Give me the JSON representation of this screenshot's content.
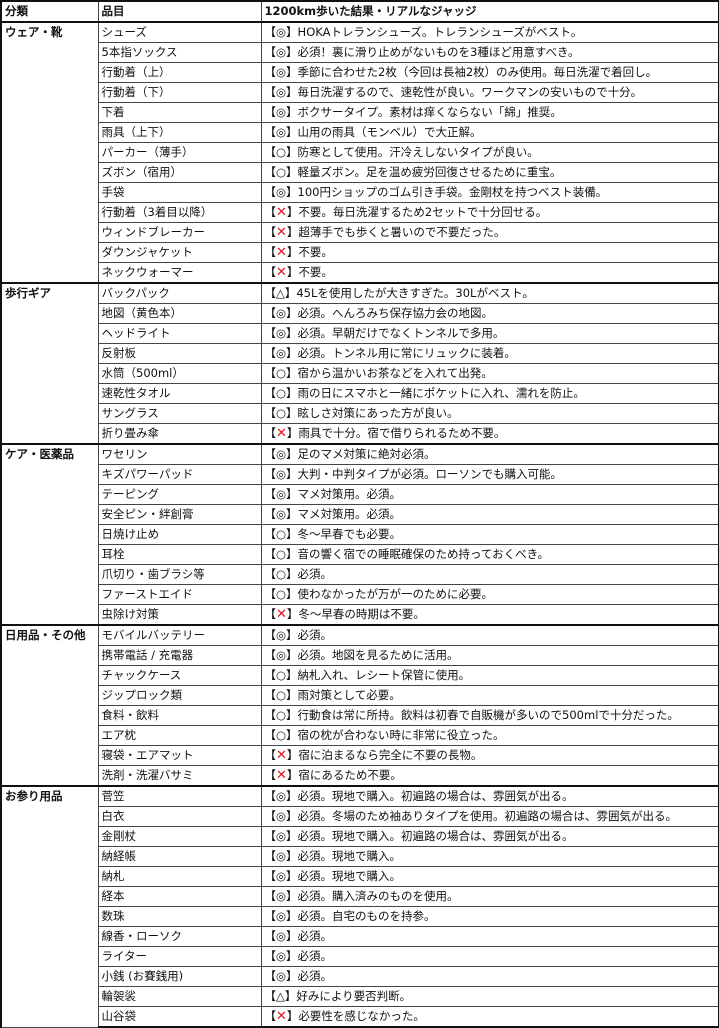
{
  "header": {
    "category": "分類",
    "item": "品目",
    "judgement": "1200km歩いた結果・リアルなジャッジ"
  },
  "bracket_open": "【",
  "bracket_close": "】",
  "colors": {
    "cross_mark": "#e0141e"
  },
  "groups": [
    {
      "category": "ウェア・靴",
      "items": [
        {
          "name": "シューズ",
          "mark": "◎",
          "note": "HOKAトレランシューズ。トレランシューズがベスト。"
        },
        {
          "name": "5本指ソックス",
          "mark": "◎",
          "note": "必須！裏に滑り止めがないものを3種ほど用意すべき。"
        },
        {
          "name": "行動着（上）",
          "mark": "◎",
          "note": "季節に合わせた2枚（今回は長袖2枚）のみ使用。毎日洗濯で着回し。"
        },
        {
          "name": "行動着（下）",
          "mark": "◎",
          "note": "毎日洗濯するので、速乾性が良い。ワークマンの安いもので十分。"
        },
        {
          "name": "下着",
          "mark": "◎",
          "note": "ボクサータイプ。素材は痒くならない「綿」推奨。"
        },
        {
          "name": "雨具（上下）",
          "mark": "◎",
          "note": "山用の雨具（モンベル）で大正解。"
        },
        {
          "name": "パーカー（薄手）",
          "mark": "○",
          "note": "防寒として使用。汗冷えしないタイプが良い。"
        },
        {
          "name": "ズボン（宿用）",
          "mark": "○",
          "note": "軽量ズボン。足を温め疲労回復させるために重宝。"
        },
        {
          "name": "手袋",
          "mark": "◎",
          "note": "100円ショップのゴム引き手袋。金剛杖を持つベスト装備。"
        },
        {
          "name": "行動着（3着目以降）",
          "mark": "✕",
          "note": "不要。毎日洗濯するため2セットで十分回せる。"
        },
        {
          "name": "ウィンドブレーカー",
          "mark": "✕",
          "note": "超薄手でも歩くと暑いので不要だった。"
        },
        {
          "name": "ダウンジャケット",
          "mark": "✕",
          "note": "不要。"
        },
        {
          "name": "ネックウォーマー",
          "mark": "✕",
          "note": "不要。"
        }
      ]
    },
    {
      "category": "歩行ギア",
      "items": [
        {
          "name": "バックパック",
          "mark": "△",
          "note": "45Lを使用したが大きすぎた。30Lがベスト。"
        },
        {
          "name": "地図（黄色本）",
          "mark": "◎",
          "note": "必須。へんろみち保存協力会の地図。"
        },
        {
          "name": "ヘッドライト",
          "mark": "◎",
          "note": "必須。早朝だけでなくトンネルで多用。"
        },
        {
          "name": "反射板",
          "mark": "◎",
          "note": "必須。トンネル用に常にリュックに装着。"
        },
        {
          "name": "水筒（500ml）",
          "mark": "○",
          "note": "宿から温かいお茶などを入れて出発。"
        },
        {
          "name": "速乾性タオル",
          "mark": "○",
          "note": "雨の日にスマホと一緒にポケットに入れ、濡れを防止。"
        },
        {
          "name": "サングラス",
          "mark": "○",
          "note": "眩しさ対策にあった方が良い。"
        },
        {
          "name": "折り畳み傘",
          "mark": "✕",
          "note": "雨具で十分。宿で借りられるため不要。"
        }
      ]
    },
    {
      "category": "ケア・医薬品",
      "items": [
        {
          "name": "ワセリン",
          "mark": "◎",
          "note": "足のマメ対策に絶対必須。"
        },
        {
          "name": "キズパワーパッド",
          "mark": "◎",
          "note": "大判・中判タイプが必須。ローソンでも購入可能。"
        },
        {
          "name": "テーピング",
          "mark": "◎",
          "note": "マメ対策用。必須。"
        },
        {
          "name": "安全ピン・絆創膏",
          "mark": "◎",
          "note": "マメ対策用。必須。"
        },
        {
          "name": "日焼け止め",
          "mark": "○",
          "note": "冬〜早春でも必要。"
        },
        {
          "name": "耳栓",
          "mark": "○",
          "note": "音の響く宿での睡眠確保のため持っておくべき。"
        },
        {
          "name": "爪切り・歯ブラシ等",
          "mark": "○",
          "note": "必須。"
        },
        {
          "name": "ファーストエイド",
          "mark": "○",
          "note": "使わなかったが万が一のために必要。"
        },
        {
          "name": "虫除け対策",
          "mark": "✕",
          "note": "冬〜早春の時期は不要。"
        }
      ]
    },
    {
      "category": "日用品・その他",
      "items": [
        {
          "name": "モバイルバッテリー",
          "mark": "◎",
          "note": "必須。"
        },
        {
          "name": "携帯電話 / 充電器",
          "mark": "◎",
          "note": "必須。地図を見るために活用。"
        },
        {
          "name": "チャックケース",
          "mark": "○",
          "note": "納札入れ、レシート保管に使用。"
        },
        {
          "name": "ジップロック類",
          "mark": "○",
          "note": "雨対策として必要。"
        },
        {
          "name": "食料・飲料",
          "mark": "○",
          "note": "行動食は常に所持。飲料は初春で自販機が多いので500mlで十分だった。"
        },
        {
          "name": "エア枕",
          "mark": "○",
          "note": "宿の枕が合わない時に非常に役立った。"
        },
        {
          "name": "寝袋・エアマット",
          "mark": "✕",
          "note": "宿に泊まるなら完全に不要の長物。"
        },
        {
          "name": "洗剤・洗濯バサミ",
          "mark": "✕",
          "note": "宿にあるため不要。"
        }
      ]
    },
    {
      "category": "お参り用品",
      "items": [
        {
          "name": "菅笠",
          "mark": "◎",
          "note": "必須。現地で購入。初遍路の場合は、雰囲気が出る。"
        },
        {
          "name": "白衣",
          "mark": "◎",
          "note": "必須。冬場のため袖ありタイプを使用。初遍路の場合は、雰囲気が出る。"
        },
        {
          "name": "金剛杖",
          "mark": "◎",
          "note": "必須。現地で購入。初遍路の場合は、雰囲気が出る。"
        },
        {
          "name": "納経帳",
          "mark": "◎",
          "note": "必須。現地で購入。"
        },
        {
          "name": "納札",
          "mark": "◎",
          "note": "必須。現地で購入。"
        },
        {
          "name": "経本",
          "mark": "◎",
          "note": "必須。購入済みのものを使用。"
        },
        {
          "name": "数珠",
          "mark": "◎",
          "note": "必須。自宅のものを持参。"
        },
        {
          "name": "線香・ローソク",
          "mark": "◎",
          "note": "必須。"
        },
        {
          "name": "ライター",
          "mark": "◎",
          "note": "必須。"
        },
        {
          "name": "小銭 (お賽銭用)",
          "mark": "◎",
          "note": "必須。"
        },
        {
          "name": "輪袈裟",
          "mark": "△",
          "note": "好みにより要否判断。"
        },
        {
          "name": "山谷袋",
          "mark": "✕",
          "note": "必要性を感じなかった。"
        }
      ]
    }
  ]
}
